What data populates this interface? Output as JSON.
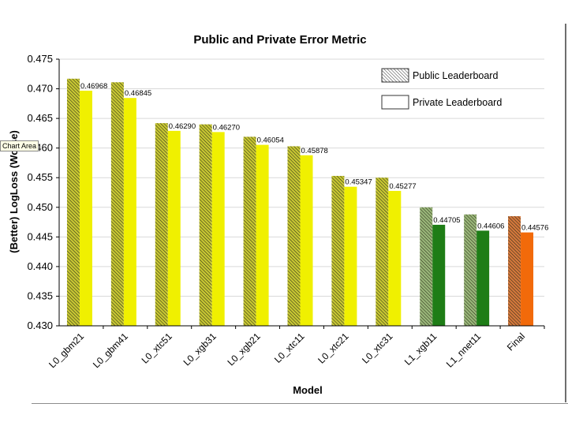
{
  "tooltip": "Chart Area",
  "chart_data": {
    "type": "bar",
    "title": "Public and Private Error Metric",
    "xlabel": "Model",
    "ylabel": "(Better) LogLoss (Worse)",
    "ylim": [
      0.43,
      0.475
    ],
    "yticks": [
      "0.430",
      "0.435",
      "0.440",
      "0.445",
      "0.450",
      "0.455",
      "0.460",
      "0.465",
      "0.470",
      "0.475"
    ],
    "categories": [
      "L0_gbm21",
      "L0_gbm41",
      "L0_xtc51",
      "L0_xgb31",
      "L0_xgb21",
      "L0_xtc11",
      "L0_xtc21",
      "L0_xtc31",
      "L1_xgb11",
      "L1_nnet11",
      "Final"
    ],
    "series": [
      {
        "name": "Public Leaderboard",
        "pattern": "hatched",
        "values": [
          0.4717,
          0.4711,
          0.4642,
          0.464,
          0.4619,
          0.4603,
          0.4553,
          0.455,
          0.45,
          0.4488,
          0.4485
        ]
      },
      {
        "name": "Private Leaderboard",
        "pattern": "solid",
        "values": [
          0.46968,
          0.46845,
          0.4629,
          0.4627,
          0.46054,
          0.45878,
          0.45347,
          0.45277,
          0.44705,
          0.44606,
          0.44576
        ]
      }
    ],
    "data_labels": [
      "0.46968",
      "0.46845",
      "0.46290",
      "0.46270",
      "0.46054",
      "0.45878",
      "0.45347",
      "0.45277",
      "0.44705",
      "0.44606",
      "0.44576"
    ],
    "bar_colors": [
      "#f0f000",
      "#f0f000",
      "#f0f000",
      "#f0f000",
      "#f0f000",
      "#f0f000",
      "#f0f000",
      "#f0f000",
      "#1e7d16",
      "#1e7d16",
      "#f26a0a"
    ],
    "hatch_colors": [
      "#c8c832",
      "#c8c832",
      "#c8c832",
      "#c8c832",
      "#c8c832",
      "#c8c832",
      "#c8c832",
      "#c8c832",
      "#9ab87a",
      "#9ab87a",
      "#d5783c"
    ],
    "grid": true,
    "legend_position": "top-right"
  }
}
